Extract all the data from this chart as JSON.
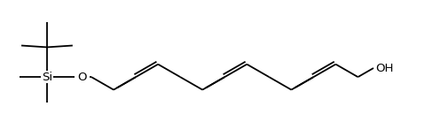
{
  "line_color": "#000000",
  "bg_color": "#ffffff",
  "line_width": 1.3,
  "font_size": 9.5,
  "label_Si": "Si",
  "label_O": "O",
  "label_OH": "OH",
  "figsize": [
    4.79,
    1.55
  ],
  "dpi": 100
}
